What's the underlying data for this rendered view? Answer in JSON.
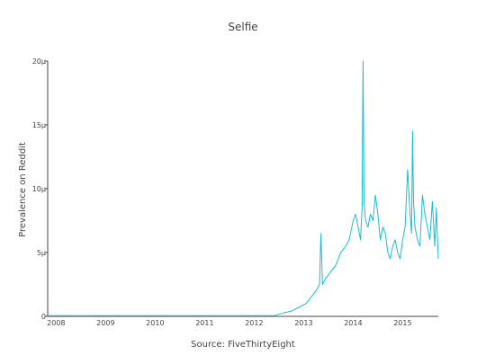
{
  "chart_data": {
    "type": "line",
    "title": "Selfie",
    "xlabel": "Source: FiveThirtyEight",
    "ylabel": "Prevalence on Reddit",
    "x_tick_labels": [
      "2008",
      "2009",
      "2010",
      "2011",
      "2012",
      "2013",
      "2014",
      "2015"
    ],
    "y_tick_labels": [
      "0",
      "5μ",
      "10μ",
      "15μ",
      "20μ"
    ],
    "y_tick_values": [
      0,
      5,
      10,
      15,
      20
    ],
    "y_unit": "μ",
    "xlim": [
      2007.83,
      2015.72
    ],
    "ylim": [
      0,
      20
    ],
    "line_color": "#17becf",
    "grid": false,
    "series": [
      {
        "x": [
          2007.83,
          2008.5,
          2009.5,
          2010.5,
          2011.5,
          2012.4,
          2012.62,
          2012.75,
          2012.85,
          2012.95,
          2013.05,
          2013.15,
          2013.25,
          2013.32,
          2013.35,
          2013.38,
          2013.45,
          2013.55,
          2013.65,
          2013.75,
          2013.85,
          2013.92,
          2014.0,
          2014.05,
          2014.1,
          2014.15,
          2014.18,
          2014.2,
          2014.22,
          2014.25,
          2014.3,
          2014.35,
          2014.4,
          2014.45,
          2014.5,
          2014.55,
          2014.6,
          2014.65,
          2014.7,
          2014.75,
          2014.8,
          2014.85,
          2014.9,
          2014.95,
          2015.0,
          2015.05,
          2015.1,
          2015.15,
          2015.18,
          2015.2,
          2015.22,
          2015.25,
          2015.3,
          2015.35,
          2015.4,
          2015.45,
          2015.5,
          2015.55,
          2015.6,
          2015.65,
          2015.68,
          2015.72
        ],
        "y": [
          0.05,
          0.05,
          0.05,
          0.05,
          0.05,
          0.05,
          0.3,
          0.4,
          0.6,
          0.8,
          1.0,
          1.5,
          2.0,
          2.5,
          6.5,
          2.5,
          3.0,
          3.5,
          4.0,
          5.0,
          5.5,
          6.0,
          7.5,
          8.0,
          7.0,
          6.0,
          8.5,
          20.0,
          9.0,
          7.5,
          7.0,
          8.0,
          7.5,
          9.5,
          8.0,
          6.0,
          7.0,
          6.5,
          5.0,
          4.5,
          5.5,
          6.0,
          5.0,
          4.5,
          6.0,
          7.0,
          11.5,
          8.0,
          6.5,
          14.5,
          9.0,
          7.0,
          6.0,
          5.5,
          9.5,
          8.0,
          7.0,
          6.0,
          9.0,
          5.5,
          8.5,
          4.5
        ]
      }
    ]
  }
}
